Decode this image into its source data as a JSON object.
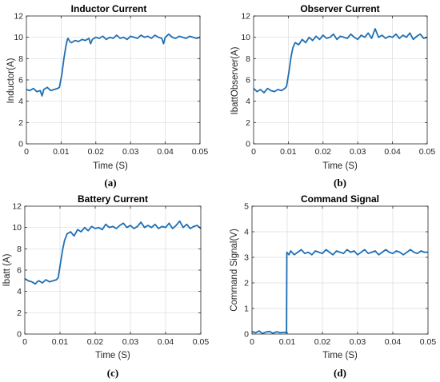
{
  "chart_data": [
    {
      "type": "line",
      "panel": "a",
      "caption": "(a)",
      "title": "Inductor Current",
      "xlabel": "Time (S)",
      "ylabel": "Inductor(A)",
      "xlim": [
        0,
        0.05
      ],
      "ylim": [
        0,
        12
      ],
      "xticks": [
        0,
        0.01,
        0.02,
        0.03,
        0.04,
        0.05
      ],
      "xtick_labels": [
        "0",
        "0.01",
        "0.02",
        "0.03",
        "0.04",
        "0.05"
      ],
      "yticks": [
        0,
        2,
        4,
        6,
        8,
        10,
        12
      ],
      "ytick_labels": [
        "0",
        "2",
        "4",
        "6",
        "8",
        "10",
        "12"
      ],
      "grid": true,
      "color": "#1f6fb4",
      "series": [
        {
          "x": [
            0,
            0.001,
            0.002,
            0.003,
            0.004,
            0.0045,
            0.005,
            0.006,
            0.007,
            0.008,
            0.009,
            0.0095,
            0.0102,
            0.0108,
            0.0114,
            0.0118,
            0.012,
            0.0125,
            0.013,
            0.014,
            0.015,
            0.016,
            0.017,
            0.018,
            0.0185,
            0.019,
            0.02,
            0.021,
            0.022,
            0.023,
            0.024,
            0.025,
            0.026,
            0.027,
            0.028,
            0.029,
            0.03,
            0.031,
            0.032,
            0.033,
            0.034,
            0.035,
            0.036,
            0.037,
            0.038,
            0.039,
            0.0395,
            0.04,
            0.041,
            0.042,
            0.043,
            0.044,
            0.045,
            0.046,
            0.047,
            0.048,
            0.049,
            0.05
          ],
          "y": [
            5.1,
            5.0,
            5.2,
            4.9,
            5.0,
            4.5,
            5.1,
            5.3,
            5.0,
            5.1,
            5.2,
            5.3,
            6.5,
            8.0,
            9.2,
            9.8,
            9.9,
            9.6,
            9.5,
            9.7,
            9.6,
            9.8,
            9.7,
            9.9,
            9.4,
            9.8,
            10.0,
            9.9,
            10.1,
            9.8,
            10.0,
            9.9,
            10.2,
            9.9,
            10.0,
            9.8,
            10.1,
            10.0,
            9.9,
            10.2,
            10.0,
            10.1,
            9.9,
            10.2,
            10.0,
            9.9,
            9.4,
            10.0,
            10.3,
            10.0,
            9.9,
            10.1,
            10.0,
            9.9,
            10.1,
            10.0,
            9.9,
            10.0
          ]
        }
      ]
    },
    {
      "type": "line",
      "panel": "b",
      "caption": "(b)",
      "title": "Observer Current",
      "xlabel": "Time (S)",
      "ylabel": "IbattObserver(A)",
      "xlim": [
        0,
        0.05
      ],
      "ylim": [
        0,
        12
      ],
      "xticks": [
        0,
        0.01,
        0.02,
        0.03,
        0.04,
        0.05
      ],
      "xtick_labels": [
        "0",
        "0.01",
        "0.02",
        "0.03",
        "0.04",
        "0.05"
      ],
      "yticks": [
        0,
        2,
        4,
        6,
        8,
        10,
        12
      ],
      "ytick_labels": [
        "0",
        "2",
        "4",
        "6",
        "8",
        "10",
        "12"
      ],
      "grid": true,
      "color": "#1f6fb4",
      "series": [
        {
          "x": [
            0,
            0.001,
            0.002,
            0.003,
            0.004,
            0.005,
            0.006,
            0.007,
            0.008,
            0.009,
            0.0095,
            0.0102,
            0.0108,
            0.0113,
            0.0118,
            0.012,
            0.013,
            0.014,
            0.015,
            0.016,
            0.017,
            0.018,
            0.019,
            0.02,
            0.021,
            0.022,
            0.023,
            0.024,
            0.025,
            0.026,
            0.027,
            0.028,
            0.029,
            0.03,
            0.031,
            0.032,
            0.033,
            0.034,
            0.035,
            0.036,
            0.037,
            0.038,
            0.039,
            0.04,
            0.041,
            0.042,
            0.043,
            0.044,
            0.045,
            0.046,
            0.047,
            0.048,
            0.049,
            0.05
          ],
          "y": [
            5.2,
            4.9,
            5.1,
            4.8,
            5.2,
            5.0,
            4.9,
            5.1,
            5.0,
            5.2,
            5.4,
            6.8,
            8.2,
            9.0,
            9.4,
            9.5,
            9.3,
            9.8,
            9.5,
            10.0,
            9.7,
            10.1,
            9.8,
            10.2,
            9.9,
            10.0,
            10.3,
            9.8,
            10.1,
            10.0,
            9.9,
            10.3,
            10.0,
            9.8,
            10.2,
            10.0,
            10.4,
            9.9,
            10.8,
            10.0,
            10.2,
            9.9,
            10.1,
            10.0,
            10.3,
            9.9,
            10.2,
            10.0,
            10.4,
            9.8,
            10.1,
            10.3,
            9.9,
            10.0
          ]
        }
      ]
    },
    {
      "type": "line",
      "panel": "c",
      "caption": "(c)",
      "title": "Battery Current",
      "xlabel": "Time (S)",
      "ylabel": "Ibatt (A)",
      "xlim": [
        0,
        0.05
      ],
      "ylim": [
        0,
        12
      ],
      "xticks": [
        0,
        0.01,
        0.02,
        0.03,
        0.04,
        0.05
      ],
      "xtick_labels": [
        "0",
        "0.01",
        "0.02",
        "0.03",
        "0.04",
        "0.05"
      ],
      "yticks": [
        0,
        2,
        4,
        6,
        8,
        10,
        12
      ],
      "ytick_labels": [
        "0",
        "2",
        "4",
        "6",
        "8",
        "10",
        "12"
      ],
      "grid": true,
      "color": "#1f6fb4",
      "series": [
        {
          "x": [
            0,
            0.001,
            0.002,
            0.003,
            0.0035,
            0.004,
            0.005,
            0.006,
            0.007,
            0.008,
            0.009,
            0.0095,
            0.0102,
            0.0108,
            0.0113,
            0.0118,
            0.012,
            0.013,
            0.014,
            0.015,
            0.016,
            0.017,
            0.018,
            0.019,
            0.02,
            0.021,
            0.022,
            0.023,
            0.024,
            0.025,
            0.026,
            0.027,
            0.028,
            0.029,
            0.03,
            0.031,
            0.032,
            0.033,
            0.034,
            0.035,
            0.036,
            0.037,
            0.038,
            0.039,
            0.04,
            0.041,
            0.042,
            0.043,
            0.044,
            0.045,
            0.046,
            0.047,
            0.048,
            0.049,
            0.05
          ],
          "y": [
            5.2,
            5.0,
            4.9,
            4.7,
            4.9,
            5.0,
            4.8,
            5.1,
            4.9,
            5.0,
            5.1,
            5.3,
            6.8,
            8.0,
            8.8,
            9.2,
            9.4,
            9.6,
            9.2,
            9.8,
            9.6,
            10.0,
            9.7,
            10.1,
            9.9,
            10.0,
            9.8,
            10.3,
            10.0,
            10.1,
            9.9,
            10.2,
            10.4,
            10.0,
            10.2,
            9.9,
            10.1,
            10.5,
            10.0,
            10.2,
            10.0,
            10.3,
            9.9,
            10.1,
            10.0,
            10.4,
            9.9,
            10.2,
            10.6,
            10.0,
            10.3,
            9.9,
            10.1,
            10.2,
            9.9
          ]
        }
      ]
    },
    {
      "type": "line",
      "panel": "d",
      "caption": "(d)",
      "title": "Command Signal",
      "xlabel": "Time (S)",
      "ylabel": "Command Signal(V)",
      "xlim": [
        0,
        0.05
      ],
      "ylim": [
        0,
        5
      ],
      "xticks": [
        0,
        0.01,
        0.02,
        0.03,
        0.04,
        0.05
      ],
      "xtick_labels": [
        "0",
        "0.01",
        "0.02",
        "0.03",
        "0.04",
        "0.05"
      ],
      "yticks": [
        0,
        1,
        2,
        3,
        4,
        5
      ],
      "ytick_labels": [
        "0",
        "1",
        "2",
        "3",
        "4",
        "5"
      ],
      "grid": true,
      "color": "#1f6fb4",
      "series": [
        {
          "x": [
            0,
            0.001,
            0.002,
            0.003,
            0.004,
            0.005,
            0.006,
            0.007,
            0.008,
            0.009,
            0.0098,
            0.0099,
            0.0105,
            0.011,
            0.012,
            0.013,
            0.014,
            0.015,
            0.016,
            0.017,
            0.018,
            0.019,
            0.02,
            0.021,
            0.022,
            0.023,
            0.024,
            0.025,
            0.026,
            0.027,
            0.028,
            0.029,
            0.03,
            0.031,
            0.032,
            0.033,
            0.034,
            0.035,
            0.036,
            0.037,
            0.038,
            0.039,
            0.04,
            0.041,
            0.042,
            0.043,
            0.044,
            0.045,
            0.046,
            0.047,
            0.048,
            0.049,
            0.05
          ],
          "y": [
            0.1,
            0.05,
            0.12,
            0.02,
            0.08,
            0.1,
            0.03,
            0.09,
            0.05,
            0.07,
            0.05,
            3.2,
            3.1,
            3.25,
            3.1,
            3.2,
            3.3,
            3.15,
            3.2,
            3.1,
            3.25,
            3.2,
            3.15,
            3.3,
            3.2,
            3.1,
            3.25,
            3.2,
            3.15,
            3.3,
            3.2,
            3.25,
            3.1,
            3.2,
            3.3,
            3.15,
            3.2,
            3.25,
            3.1,
            3.2,
            3.3,
            3.2,
            3.15,
            3.25,
            3.2,
            3.1,
            3.2,
            3.3,
            3.2,
            3.15,
            3.25,
            3.2,
            3.2
          ]
        }
      ]
    }
  ]
}
